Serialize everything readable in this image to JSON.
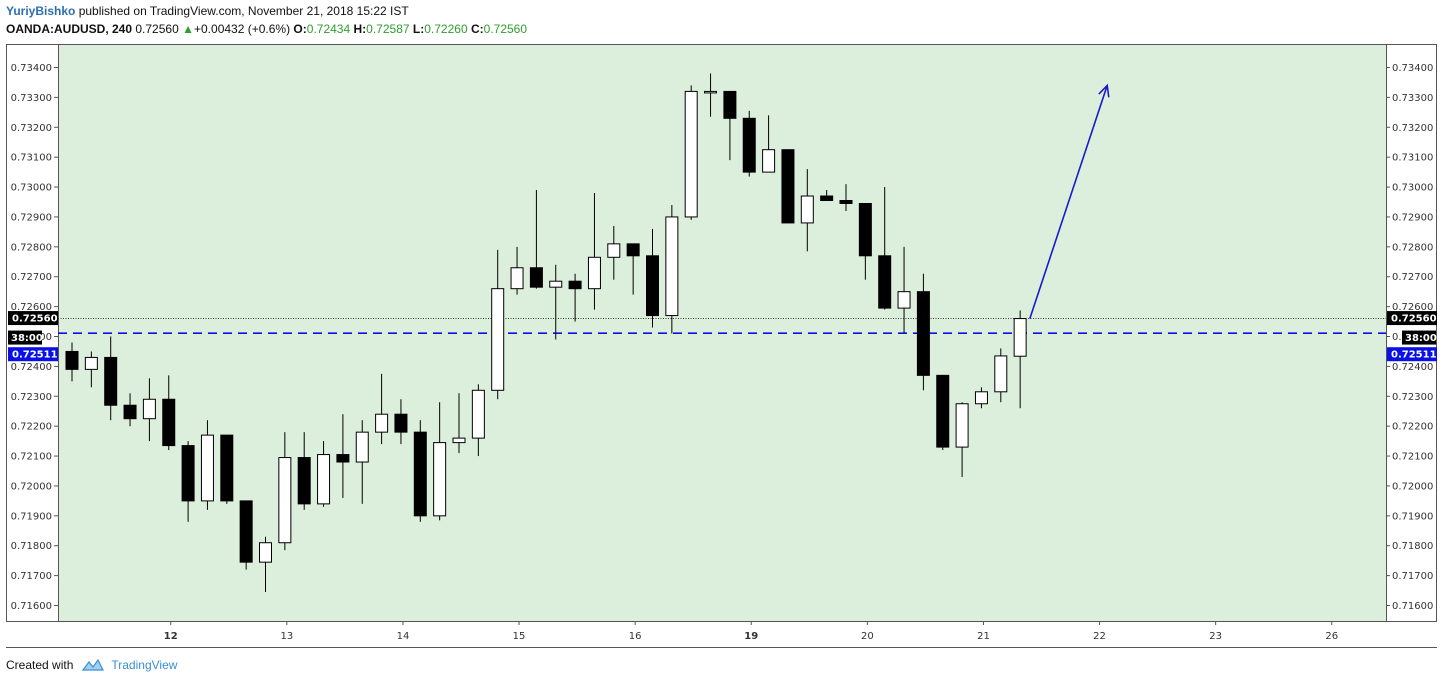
{
  "header": {
    "author": "YuriyBishko",
    "published_text": " published on TradingView.com, November 21, 2018 15:22 IST",
    "symbol": "OANDA:AUDUSD, 240",
    "last": "0.72560",
    "change": "+0.00432 (+0.6%)",
    "open_label": "O:",
    "open": "0.72434",
    "high_label": "H:",
    "high": "0.72587",
    "low_label": "L:",
    "low": "0.72260",
    "close_label": "C:",
    "close": "0.72560"
  },
  "footer": {
    "created_with": "Created with",
    "brand": "TradingView"
  },
  "colors": {
    "plot_bg": "#dcefdc",
    "up_body": "#ffffff",
    "down_body": "#000000",
    "hline": "#1010e0",
    "arrow": "#1a1ac8",
    "price_badge": "#000000",
    "line_badge": "#0a10e6"
  },
  "chart_data": {
    "type": "candlestick",
    "title": "OANDA:AUDUSD, 240",
    "ylim": [
      0.7155,
      0.7345
    ],
    "y_ticks": [
      "0.73400",
      "0.73300",
      "0.73200",
      "0.73100",
      "0.73000",
      "0.72900",
      "0.72800",
      "0.72700",
      "0.72600",
      "0.72500",
      "0.72400",
      "0.72300",
      "0.72200",
      "0.72100",
      "0.72000",
      "0.71900",
      "0.71800",
      "0.71700",
      "0.71600"
    ],
    "x_ticks": [
      {
        "label": "12",
        "index": 5,
        "bold": true
      },
      {
        "label": "13",
        "index": 11,
        "bold": false
      },
      {
        "label": "14",
        "index": 17,
        "bold": false
      },
      {
        "label": "15",
        "index": 23,
        "bold": false
      },
      {
        "label": "16",
        "index": 29,
        "bold": false
      },
      {
        "label": "19",
        "index": 35,
        "bold": true
      },
      {
        "label": "20",
        "index": 41,
        "bold": false
      },
      {
        "label": "21",
        "index": 47,
        "bold": false
      },
      {
        "label": "22",
        "index": 53,
        "bold": false
      },
      {
        "label": "23",
        "index": 59,
        "bold": false
      },
      {
        "label": "26",
        "index": 65,
        "bold": false
      }
    ],
    "candles": [
      {
        "o": 0.7245,
        "h": 0.7248,
        "l": 0.7235,
        "c": 0.7239
      },
      {
        "o": 0.7239,
        "h": 0.7245,
        "l": 0.7233,
        "c": 0.7243
      },
      {
        "o": 0.7243,
        "h": 0.725,
        "l": 0.7222,
        "c": 0.7227
      },
      {
        "o": 0.7227,
        "h": 0.7231,
        "l": 0.722,
        "c": 0.72225
      },
      {
        "o": 0.72225,
        "h": 0.7236,
        "l": 0.7215,
        "c": 0.7229
      },
      {
        "o": 0.7229,
        "h": 0.7237,
        "l": 0.7212,
        "c": 0.72135
      },
      {
        "o": 0.72135,
        "h": 0.7215,
        "l": 0.7188,
        "c": 0.7195
      },
      {
        "o": 0.7195,
        "h": 0.7222,
        "l": 0.7192,
        "c": 0.7217
      },
      {
        "o": 0.7217,
        "h": 0.7217,
        "l": 0.7194,
        "c": 0.7195
      },
      {
        "o": 0.7195,
        "h": 0.7195,
        "l": 0.7172,
        "c": 0.71745
      },
      {
        "o": 0.71745,
        "h": 0.7183,
        "l": 0.71645,
        "c": 0.7181
      },
      {
        "o": 0.7181,
        "h": 0.7218,
        "l": 0.71785,
        "c": 0.72095
      },
      {
        "o": 0.72095,
        "h": 0.7218,
        "l": 0.7192,
        "c": 0.7194
      },
      {
        "o": 0.7194,
        "h": 0.7215,
        "l": 0.7193,
        "c": 0.72105
      },
      {
        "o": 0.72105,
        "h": 0.7224,
        "l": 0.7196,
        "c": 0.7208
      },
      {
        "o": 0.7208,
        "h": 0.7222,
        "l": 0.7194,
        "c": 0.7218
      },
      {
        "o": 0.7218,
        "h": 0.72375,
        "l": 0.7214,
        "c": 0.7224
      },
      {
        "o": 0.7224,
        "h": 0.7229,
        "l": 0.7214,
        "c": 0.7218
      },
      {
        "o": 0.7218,
        "h": 0.7222,
        "l": 0.7188,
        "c": 0.719
      },
      {
        "o": 0.719,
        "h": 0.7228,
        "l": 0.71885,
        "c": 0.72145
      },
      {
        "o": 0.72145,
        "h": 0.7231,
        "l": 0.7211,
        "c": 0.7216
      },
      {
        "o": 0.7216,
        "h": 0.7234,
        "l": 0.721,
        "c": 0.7232
      },
      {
        "o": 0.7232,
        "h": 0.7279,
        "l": 0.7229,
        "c": 0.7266
      },
      {
        "o": 0.7266,
        "h": 0.728,
        "l": 0.7264,
        "c": 0.7273
      },
      {
        "o": 0.7273,
        "h": 0.7299,
        "l": 0.7266,
        "c": 0.72665
      },
      {
        "o": 0.72665,
        "h": 0.7274,
        "l": 0.7249,
        "c": 0.72685
      },
      {
        "o": 0.72685,
        "h": 0.7271,
        "l": 0.7255,
        "c": 0.7266
      },
      {
        "o": 0.7266,
        "h": 0.7298,
        "l": 0.7259,
        "c": 0.72765
      },
      {
        "o": 0.72765,
        "h": 0.7287,
        "l": 0.7269,
        "c": 0.7281
      },
      {
        "o": 0.7281,
        "h": 0.7281,
        "l": 0.7264,
        "c": 0.7277
      },
      {
        "o": 0.7277,
        "h": 0.7286,
        "l": 0.7253,
        "c": 0.7257
      },
      {
        "o": 0.7257,
        "h": 0.7294,
        "l": 0.7251,
        "c": 0.729
      },
      {
        "o": 0.729,
        "h": 0.7334,
        "l": 0.7289,
        "c": 0.7332
      },
      {
        "o": 0.7332,
        "h": 0.7338,
        "l": 0.73235,
        "c": 0.7332
      },
      {
        "o": 0.7332,
        "h": 0.7332,
        "l": 0.7309,
        "c": 0.7323
      },
      {
        "o": 0.7323,
        "h": 0.73255,
        "l": 0.73035,
        "c": 0.7305
      },
      {
        "o": 0.7305,
        "h": 0.7324,
        "l": 0.7305,
        "c": 0.73125
      },
      {
        "o": 0.73125,
        "h": 0.73125,
        "l": 0.7288,
        "c": 0.7288
      },
      {
        "o": 0.7288,
        "h": 0.7306,
        "l": 0.72785,
        "c": 0.7297
      },
      {
        "o": 0.7297,
        "h": 0.7299,
        "l": 0.72955,
        "c": 0.72955
      },
      {
        "o": 0.72955,
        "h": 0.7301,
        "l": 0.7292,
        "c": 0.72945
      },
      {
        "o": 0.72945,
        "h": 0.72945,
        "l": 0.7269,
        "c": 0.7277
      },
      {
        "o": 0.7277,
        "h": 0.73,
        "l": 0.7259,
        "c": 0.72595
      },
      {
        "o": 0.72595,
        "h": 0.728,
        "l": 0.7251,
        "c": 0.7265
      },
      {
        "o": 0.7265,
        "h": 0.7271,
        "l": 0.7232,
        "c": 0.7237
      },
      {
        "o": 0.7237,
        "h": 0.7237,
        "l": 0.7212,
        "c": 0.7213
      },
      {
        "o": 0.7213,
        "h": 0.7228,
        "l": 0.7203,
        "c": 0.72275
      },
      {
        "o": 0.72275,
        "h": 0.7233,
        "l": 0.7226,
        "c": 0.72315
      },
      {
        "o": 0.72315,
        "h": 0.7246,
        "l": 0.7228,
        "c": 0.72435
      },
      {
        "o": 0.72434,
        "h": 0.72587,
        "l": 0.7226,
        "c": 0.7256
      }
    ],
    "price_line": {
      "value": 0.7256,
      "label": "0.72560"
    },
    "support_line": {
      "value": 0.72511,
      "label": "0.72511"
    },
    "countdown": "38:00",
    "annotation": {
      "type": "arrow",
      "from": {
        "index": 49.5,
        "value": 0.7256
      },
      "to": {
        "index": 53.5,
        "value": 0.7334
      }
    }
  }
}
